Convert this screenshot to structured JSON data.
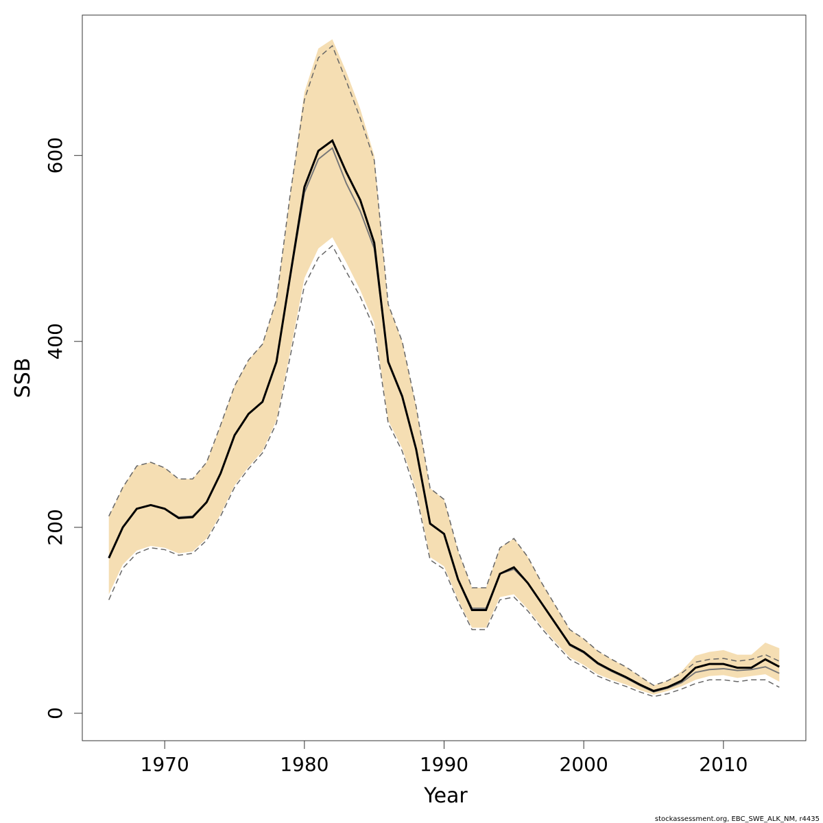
{
  "chart_data": {
    "type": "line",
    "x_label": "Year",
    "y_label": "SSB",
    "footnote": "stockassessment.org, EBC_SWE_ALK_NM, r4435",
    "x": [
      1966,
      1967,
      1968,
      1969,
      1970,
      1971,
      1972,
      1973,
      1974,
      1975,
      1976,
      1977,
      1978,
      1979,
      1980,
      1981,
      1982,
      1983,
      1984,
      1985,
      1986,
      1987,
      1988,
      1989,
      1990,
      1991,
      1992,
      1993,
      1994,
      1995,
      1996,
      1997,
      1998,
      1999,
      2000,
      2001,
      2002,
      2003,
      2004,
      2005,
      2006,
      2007,
      2008,
      2009,
      2010,
      2011,
      2012,
      2013,
      2014
    ],
    "xlim": [
      1964.1,
      2015.9
    ],
    "xticks": [
      1970,
      1980,
      1990,
      2000,
      2010
    ],
    "ylim": [
      -29.5,
      751
    ],
    "yticks": [
      0,
      200,
      400,
      600
    ],
    "band": {
      "color": "#f5deb3",
      "upper": [
        212,
        243,
        266,
        270,
        264,
        252,
        252,
        270,
        310,
        352,
        380,
        397,
        445,
        560,
        668,
        715,
        725,
        690,
        650,
        600,
        440,
        400,
        330,
        242,
        230,
        175,
        135,
        135,
        178,
        188,
        168,
        140,
        115,
        90,
        80,
        67,
        58,
        50,
        40,
        30,
        35,
        45,
        62,
        66,
        68,
        63,
        63,
        76,
        70
      ],
      "lower": [
        128,
        160,
        175,
        180,
        178,
        172,
        174,
        188,
        214,
        245,
        265,
        282,
        315,
        390,
        468,
        500,
        512,
        485,
        455,
        420,
        315,
        285,
        240,
        168,
        158,
        122,
        92,
        92,
        125,
        128,
        112,
        93,
        76,
        60,
        52,
        42,
        36,
        31,
        25,
        20,
        24,
        29,
        36,
        40,
        41,
        38,
        40,
        42,
        34
      ]
    },
    "series": [
      {
        "color": "#666666",
        "dashed": true,
        "width": 1.5,
        "values": [
          212,
          243,
          266,
          270,
          264,
          252,
          252,
          270,
          310,
          352,
          380,
          397,
          445,
          560,
          660,
          705,
          718,
          680,
          640,
          595,
          440,
          400,
          330,
          242,
          230,
          175,
          135,
          135,
          178,
          188,
          168,
          140,
          115,
          90,
          80,
          67,
          58,
          50,
          40,
          30,
          35,
          43,
          55,
          58,
          59,
          56,
          58,
          63,
          56
        ]
      },
      {
        "color": "#666666",
        "dashed": true,
        "width": 1.5,
        "values": [
          122,
          156,
          172,
          178,
          176,
          170,
          172,
          186,
          212,
          243,
          263,
          280,
          312,
          385,
          460,
          490,
          503,
          475,
          448,
          414,
          312,
          282,
          236,
          165,
          155,
          120,
          90,
          90,
          122,
          125,
          110,
          91,
          74,
          58,
          50,
          40,
          34,
          29,
          23,
          18,
          21,
          26,
          32,
          36,
          36,
          34,
          36,
          36,
          28
        ]
      },
      {
        "color": "#777777",
        "dashed": false,
        "width": 2,
        "values": [
          167,
          200,
          220,
          224,
          220,
          211,
          212,
          227,
          258,
          299,
          322,
          335,
          378,
          470,
          560,
          596,
          608,
          570,
          540,
          500,
          378,
          341,
          284,
          204,
          193,
          144,
          113,
          113,
          150,
          155,
          140,
          118,
          96,
          73,
          65,
          53,
          45,
          38,
          30,
          23,
          27,
          33,
          44,
          47,
          48,
          46,
          47,
          50,
          43
        ]
      },
      {
        "color": "#000000",
        "dashed": false,
        "width": 3,
        "values": [
          167,
          200,
          220,
          224,
          220,
          210,
          211,
          227,
          258,
          299,
          322,
          335,
          378,
          472,
          566,
          605,
          616,
          582,
          552,
          506,
          378,
          341,
          284,
          204,
          193,
          144,
          111,
          111,
          150,
          157,
          140,
          118,
          96,
          74,
          66,
          54,
          46,
          39,
          31,
          24,
          28,
          35,
          49,
          53,
          53,
          49,
          49,
          58,
          50
        ]
      }
    ]
  }
}
